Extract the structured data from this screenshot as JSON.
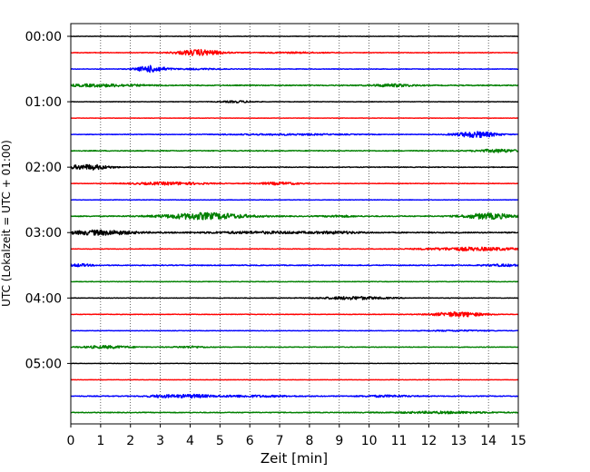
{
  "chart_data": {
    "type": "line",
    "title": "",
    "xlabel": "Zeit  [min]",
    "ylabel": "UTC (Lokalzeit = UTC + 01:00)",
    "xlim": [
      0,
      15
    ],
    "x_ticks": [
      "0",
      "1",
      "2",
      "3",
      "4",
      "5",
      "6",
      "7",
      "8",
      "9",
      "10",
      "11",
      "12",
      "13",
      "14",
      "15"
    ],
    "y_tick_labels": [
      "00:00",
      "01:00",
      "02:00",
      "03:00",
      "04:00",
      "05:00"
    ],
    "grid": {
      "vertical": true,
      "style": "dotted"
    },
    "trace_interval_min": 15,
    "trace_colors": [
      "#000000",
      "#ff0000",
      "#0000ff",
      "#008000"
    ],
    "trace_count": 24,
    "amplitude": "relative",
    "traces": [
      {
        "start": "00:00",
        "color": "#000000",
        "base": 0.25,
        "events": []
      },
      {
        "start": "00:15",
        "color": "#ff0000",
        "base": 0.3,
        "events": [
          {
            "t": 4.3,
            "a": 3.2,
            "w": 0.55
          },
          {
            "t": 7.5,
            "a": 0.6,
            "w": 0.8
          }
        ]
      },
      {
        "start": "00:30",
        "color": "#0000ff",
        "base": 0.3,
        "events": [
          {
            "t": 2.7,
            "a": 3.6,
            "w": 0.35
          },
          {
            "t": 4.3,
            "a": 0.6,
            "w": 0.6
          }
        ]
      },
      {
        "start": "00:45",
        "color": "#008000",
        "base": 0.5,
        "events": [
          {
            "t": 1.0,
            "a": 1.3,
            "w": 1.0
          },
          {
            "t": 10.8,
            "a": 1.4,
            "w": 0.5
          }
        ]
      },
      {
        "start": "01:00",
        "color": "#000000",
        "base": 0.25,
        "events": [
          {
            "t": 5.6,
            "a": 1.0,
            "w": 0.4
          }
        ]
      },
      {
        "start": "01:15",
        "color": "#ff0000",
        "base": 0.2,
        "events": []
      },
      {
        "start": "01:30",
        "color": "#0000ff",
        "base": 0.3,
        "events": [
          {
            "t": 7.3,
            "a": 0.7,
            "w": 1.5
          },
          {
            "t": 13.6,
            "a": 3.3,
            "w": 0.5
          }
        ]
      },
      {
        "start": "01:45",
        "color": "#008000",
        "base": 0.45,
        "events": [
          {
            "t": 14.3,
            "a": 1.6,
            "w": 0.5
          }
        ]
      },
      {
        "start": "02:00",
        "color": "#000000",
        "base": 0.35,
        "events": [
          {
            "t": 0.6,
            "a": 2.8,
            "w": 0.5
          }
        ]
      },
      {
        "start": "02:15",
        "color": "#ff0000",
        "base": 0.3,
        "events": [
          {
            "t": 3.3,
            "a": 1.5,
            "w": 0.9
          },
          {
            "t": 7.0,
            "a": 1.4,
            "w": 0.5
          }
        ]
      },
      {
        "start": "02:30",
        "color": "#0000ff",
        "base": 0.25,
        "events": []
      },
      {
        "start": "02:45",
        "color": "#008000",
        "base": 0.5,
        "events": [
          {
            "t": 4.5,
            "a": 3.5,
            "w": 1.0
          },
          {
            "t": 9.0,
            "a": 0.8,
            "w": 0.4
          },
          {
            "t": 14.0,
            "a": 3.0,
            "w": 0.6
          }
        ]
      },
      {
        "start": "03:00",
        "color": "#000000",
        "base": 0.55,
        "events": [
          {
            "t": 1.0,
            "a": 2.5,
            "w": 0.8
          },
          {
            "t": 6.5,
            "a": 1.0,
            "w": 1.5
          },
          {
            "t": 9.0,
            "a": 0.9,
            "w": 0.5
          }
        ]
      },
      {
        "start": "03:15",
        "color": "#ff0000",
        "base": 0.3,
        "events": [
          {
            "t": 13.5,
            "a": 1.8,
            "w": 1.2
          }
        ]
      },
      {
        "start": "03:30",
        "color": "#0000ff",
        "base": 0.45,
        "events": [
          {
            "t": 0.3,
            "a": 1.3,
            "w": 0.3
          },
          {
            "t": 14.5,
            "a": 1.0,
            "w": 0.5
          }
        ]
      },
      {
        "start": "03:45",
        "color": "#008000",
        "base": 0.3,
        "events": []
      },
      {
        "start": "04:00",
        "color": "#000000",
        "base": 0.3,
        "events": [
          {
            "t": 9.5,
            "a": 1.6,
            "w": 0.8
          }
        ]
      },
      {
        "start": "04:15",
        "color": "#ff0000",
        "base": 0.3,
        "events": [
          {
            "t": 13.0,
            "a": 2.6,
            "w": 0.6
          }
        ]
      },
      {
        "start": "04:30",
        "color": "#0000ff",
        "base": 0.25,
        "events": [
          {
            "t": 13.0,
            "a": 0.6,
            "w": 0.8
          }
        ]
      },
      {
        "start": "04:45",
        "color": "#008000",
        "base": 0.35,
        "events": [
          {
            "t": 1.2,
            "a": 1.4,
            "w": 0.6
          },
          {
            "t": 4.0,
            "a": 0.9,
            "w": 0.4
          }
        ]
      },
      {
        "start": "05:00",
        "color": "#000000",
        "base": 0.2,
        "events": []
      },
      {
        "start": "05:15",
        "color": "#ff0000",
        "base": 0.2,
        "events": []
      },
      {
        "start": "05:30",
        "color": "#0000ff",
        "base": 0.45,
        "events": [
          {
            "t": 3.1,
            "a": 1.3,
            "w": 0.4
          },
          {
            "t": 4.1,
            "a": 1.5,
            "w": 0.4
          },
          {
            "t": 6.0,
            "a": 0.9,
            "w": 1.0
          },
          {
            "t": 10.6,
            "a": 0.9,
            "w": 0.6
          }
        ]
      },
      {
        "start": "05:45",
        "color": "#008000",
        "base": 0.4,
        "events": [
          {
            "t": 12.5,
            "a": 1.0,
            "w": 1.2
          }
        ]
      }
    ]
  }
}
